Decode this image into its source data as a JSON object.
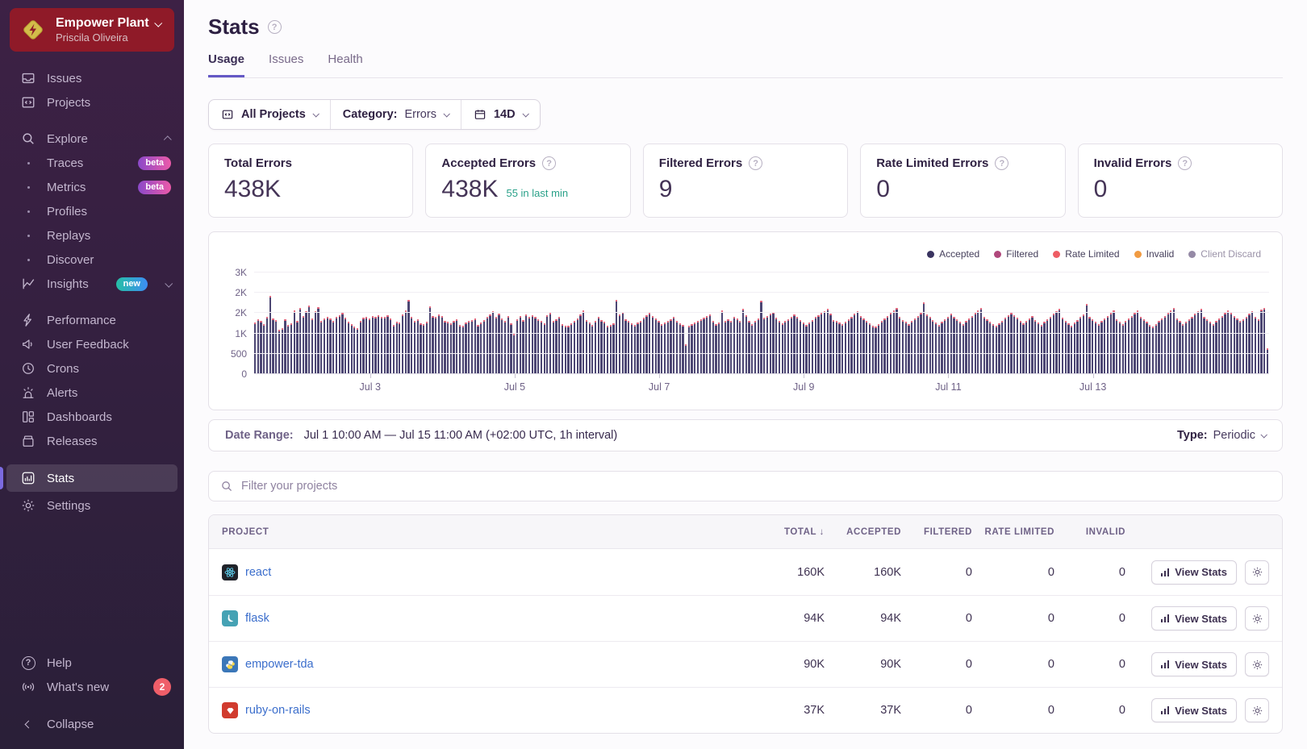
{
  "colors": {
    "accent": "#6458c5",
    "org_red": "#8f1a28",
    "link_blue": "#3b6ecc",
    "teal": "#2aa189",
    "sidebar_top": "#3d2145",
    "sidebar_bottom": "#2a1f38",
    "active_accent": "#7b6ae0",
    "badge_red": "#ef5e69",
    "bar": "#4c4673",
    "bar_tip": "#e2697f"
  },
  "icons": {
    "org_logo": "gold-diamond-bolt",
    "search": "magnifier",
    "help": "question-circle",
    "calendar": "calendar",
    "sort": "arrow-down",
    "gear": "gear",
    "view_stats": "bar-chart"
  },
  "sidebar": {
    "org": {
      "name": "Empower Plant",
      "user": "Priscila Oliveira"
    },
    "primary": [
      {
        "label": "Issues"
      },
      {
        "label": "Projects"
      }
    ],
    "explore": {
      "label": "Explore",
      "items": [
        {
          "label": "Traces",
          "badge": "beta"
        },
        {
          "label": "Metrics",
          "badge": "beta"
        },
        {
          "label": "Profiles"
        },
        {
          "label": "Replays"
        },
        {
          "label": "Discover"
        }
      ]
    },
    "insights": {
      "label": "Insights",
      "badge": "new"
    },
    "secondary": [
      {
        "label": "Performance"
      },
      {
        "label": "User Feedback"
      },
      {
        "label": "Crons"
      },
      {
        "label": "Alerts"
      },
      {
        "label": "Dashboards"
      },
      {
        "label": "Releases"
      }
    ],
    "tertiary": [
      {
        "label": "Stats",
        "active": true
      },
      {
        "label": "Settings"
      }
    ],
    "footer": {
      "help": "Help",
      "whats_new": "What's new",
      "whats_new_count": "2",
      "collapse": "Collapse"
    }
  },
  "header": {
    "title": "Stats",
    "tabs": [
      {
        "label": "Usage",
        "active": true
      },
      {
        "label": "Issues"
      },
      {
        "label": "Health"
      }
    ]
  },
  "filters": {
    "projects": "All Projects",
    "category_label": "Category:",
    "category_value": "Errors",
    "range": "14D"
  },
  "cards": [
    {
      "title": "Total Errors",
      "value": "438K",
      "help": false
    },
    {
      "title": "Accepted Errors",
      "value": "438K",
      "extra": "55 in last min",
      "help": true
    },
    {
      "title": "Filtered Errors",
      "value": "9",
      "help": true
    },
    {
      "title": "Rate Limited Errors",
      "value": "0",
      "help": true
    },
    {
      "title": "Invalid Errors",
      "value": "0",
      "help": true
    }
  ],
  "chart_data": {
    "type": "bar",
    "title": "Errors over time (hourly)",
    "interval": "1h",
    "x_start": "Jul 1 10:00 AM",
    "x_end": "Jul 15 11:00 AM",
    "y_max": 3000,
    "y_tick_labels": [
      "0",
      "500",
      "1K",
      "2K",
      "2K",
      "3K"
    ],
    "x_tick_labels": [
      "Jul 3",
      "Jul 5",
      "Jul 7",
      "Jul 9",
      "Jul 11",
      "Jul 13"
    ],
    "x_tick_indices": [
      38,
      86,
      134,
      182,
      230,
      278
    ],
    "bar_color": "#4c4673",
    "tip_color": "#e2697f",
    "tip_series_note": "small per-bar cap of non-accepted events, approx 25 events",
    "legend": [
      {
        "name": "Accepted",
        "color": "#3a3460"
      },
      {
        "name": "Filtered",
        "color": "#b0487c"
      },
      {
        "name": "Rate Limited",
        "color": "#ee5d64"
      },
      {
        "name": "Invalid",
        "color": "#f19b42"
      },
      {
        "name": "Client Discard",
        "color": "#958aa6",
        "muted": true
      }
    ],
    "series": [
      {
        "name": "Accepted",
        "values": [
          1530,
          1610,
          1570,
          1480,
          1700,
          2320,
          1650,
          1590,
          1320,
          1350,
          1620,
          1450,
          1510,
          1880,
          1560,
          1950,
          1720,
          1860,
          2030,
          1640,
          1850,
          1980,
          1570,
          1650,
          1700,
          1640,
          1560,
          1690,
          1750,
          1820,
          1660,
          1540,
          1480,
          1400,
          1350,
          1560,
          1660,
          1700,
          1640,
          1720,
          1690,
          1750,
          1700,
          1680,
          1730,
          1650,
          1450,
          1550,
          1520,
          1760,
          1870,
          2180,
          1700,
          1560,
          1620,
          1500,
          1470,
          1540,
          2000,
          1720,
          1680,
          1760,
          1720,
          1580,
          1540,
          1500,
          1560,
          1620,
          1460,
          1440,
          1520,
          1580,
          1600,
          1640,
          1450,
          1520,
          1600,
          1680,
          1760,
          1850,
          1700,
          1780,
          1640,
          1560,
          1720,
          1500,
          1190,
          1630,
          1720,
          1600,
          1760,
          1680,
          1740,
          1700,
          1620,
          1560,
          1510,
          1750,
          1800,
          1560,
          1620,
          1680,
          1480,
          1420,
          1440,
          1500,
          1560,
          1640,
          1760,
          1880,
          1600,
          1520,
          1460,
          1560,
          1680,
          1600,
          1540,
          1420,
          1460,
          1500,
          2180,
          1760,
          1840,
          1620,
          1560,
          1500,
          1460,
          1520,
          1580,
          1660,
          1740,
          1800,
          1720,
          1640,
          1560,
          1480,
          1520,
          1560,
          1620,
          1680,
          1560,
          1500,
          1450,
          880,
          1430,
          1470,
          1520,
          1560,
          1610,
          1660,
          1710,
          1760,
          1560,
          1480,
          1520,
          1880,
          1560,
          1620,
          1580,
          1700,
          1640,
          1560,
          1920,
          1740,
          1560,
          1480,
          1560,
          1640,
          2160,
          1660,
          1720,
          1780,
          1840,
          1660,
          1580,
          1500,
          1560,
          1620,
          1700,
          1760,
          1680,
          1600,
          1520,
          1460,
          1520,
          1600,
          1680,
          1740,
          1800,
          1860,
          1920,
          1780,
          1600,
          1560,
          1520,
          1480,
          1540,
          1620,
          1700,
          1780,
          1860,
          1720,
          1640,
          1560,
          1500,
          1440,
          1400,
          1480,
          1560,
          1640,
          1720,
          1800,
          1880,
          1960,
          1680,
          1600,
          1540,
          1480,
          1560,
          1640,
          1720,
          1800,
          2130,
          1760,
          1680,
          1600,
          1520,
          1460,
          1540,
          1620,
          1700,
          1780,
          1700,
          1620,
          1540,
          1480,
          1560,
          1640,
          1720,
          1800,
          1880,
          1960,
          1700,
          1620,
          1540,
          1480,
          1420,
          1500,
          1580,
          1660,
          1740,
          1820,
          1740,
          1660,
          1580,
          1500,
          1560,
          1640,
          1720,
          1600,
          1520,
          1460,
          1540,
          1620,
          1700,
          1780,
          1860,
          1940,
          1660,
          1580,
          1500,
          1440,
          1520,
          1600,
          1680,
          1760,
          2060,
          1700,
          1620,
          1540,
          1480,
          1560,
          1640,
          1720,
          1800,
          1880,
          1620,
          1540,
          1480,
          1560,
          1640,
          1720,
          1800,
          1880,
          1700,
          1620,
          1540,
          1460,
          1400,
          1480,
          1560,
          1640,
          1720,
          1800,
          1880,
          1960,
          1640,
          1560,
          1480,
          1540,
          1620,
          1700,
          1780,
          1860,
          1940,
          1700,
          1620,
          1540,
          1480,
          1560,
          1640,
          1720,
          1800,
          1880,
          1800,
          1720,
          1640,
          1560,
          1620,
          1700,
          1780,
          1860,
          1700,
          1620,
          1900,
          1960,
          760
        ]
      }
    ]
  },
  "date_range": {
    "label": "Date Range:",
    "value": "Jul 1 10:00 AM — Jul 15 11:00 AM (+02:00 UTC, 1h interval)",
    "type_label": "Type:",
    "type_value": "Periodic"
  },
  "search": {
    "placeholder": "Filter your projects"
  },
  "table": {
    "columns": [
      {
        "label": "PROJECT"
      },
      {
        "label": "TOTAL",
        "sorted": "desc"
      },
      {
        "label": "ACCEPTED"
      },
      {
        "label": "FILTERED"
      },
      {
        "label": "RATE LIMITED"
      },
      {
        "label": "INVALID"
      }
    ],
    "action_label": "View Stats",
    "rows": [
      {
        "project": "react",
        "platform": "react",
        "total": "160K",
        "accepted": "160K",
        "filtered": "0",
        "rate_limited": "0",
        "invalid": "0"
      },
      {
        "project": "flask",
        "platform": "flask",
        "total": "94K",
        "accepted": "94K",
        "filtered": "0",
        "rate_limited": "0",
        "invalid": "0"
      },
      {
        "project": "empower-tda",
        "platform": "python",
        "total": "90K",
        "accepted": "90K",
        "filtered": "0",
        "rate_limited": "0",
        "invalid": "0"
      },
      {
        "project": "ruby-on-rails",
        "platform": "rails",
        "total": "37K",
        "accepted": "37K",
        "filtered": "0",
        "rate_limited": "0",
        "invalid": "0"
      }
    ]
  }
}
